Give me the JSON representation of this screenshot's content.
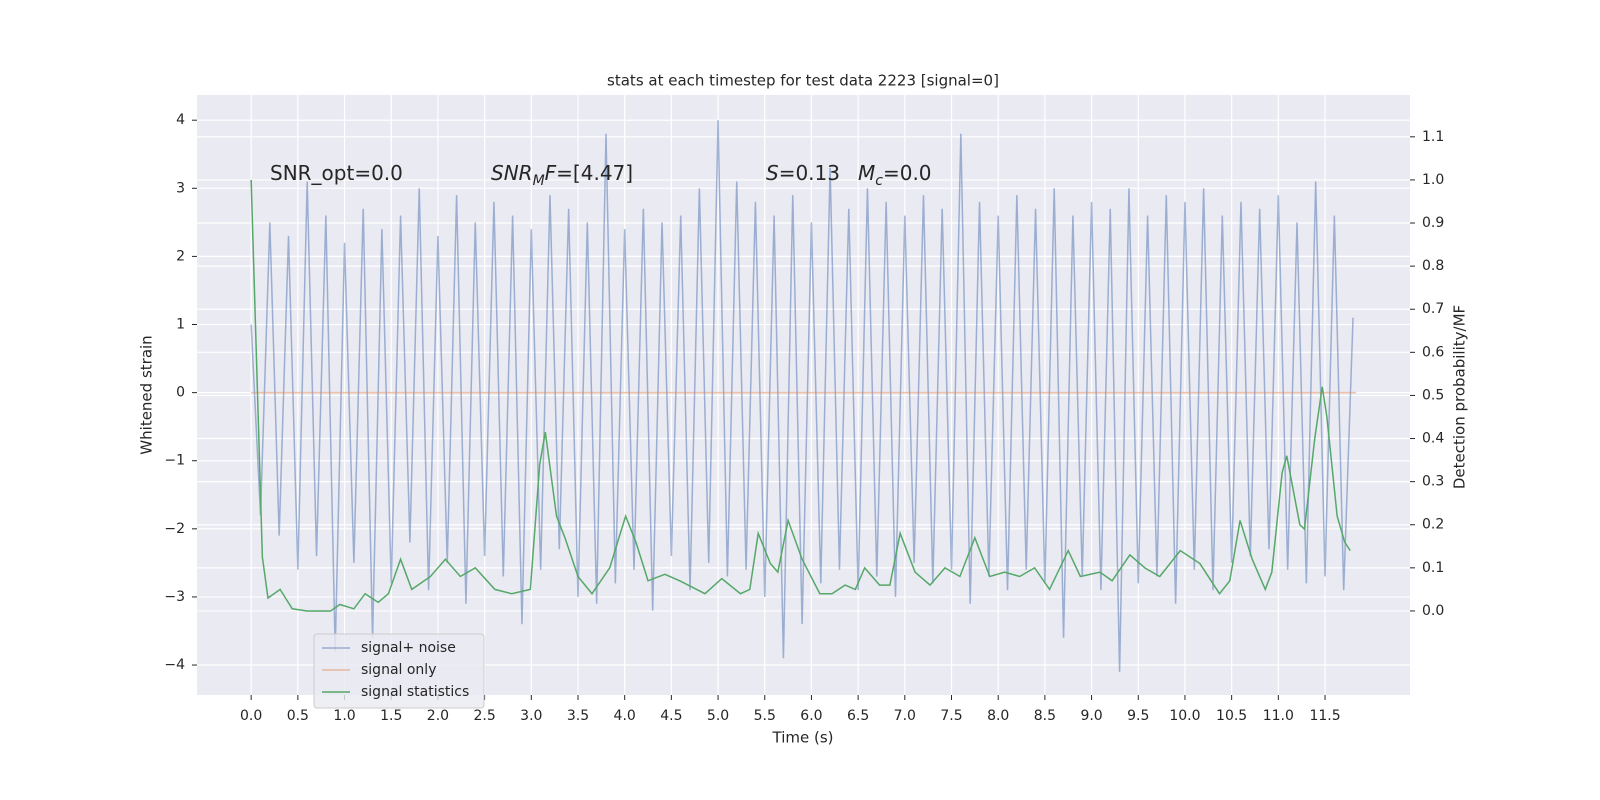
{
  "chart_data": {
    "type": "line",
    "title": "stats at each timestep for test data 2223 [signal=0]",
    "xlabel": "Time (s)",
    "ylabel": "Whitened strain",
    "y2label": "Detection probability/MF",
    "annotations": [
      "SNR_opt=0.0",
      [
        "SNR",
        "M",
        "F",
        "=[4.47]"
      ],
      [
        "S",
        "=0.13"
      ],
      [
        "M",
        "c",
        "=0.0"
      ]
    ],
    "xlim": [
      -0.58,
      12.41
    ],
    "ylim": [
      -4.44,
      4.37
    ],
    "y2lim": [
      -0.195,
      1.197
    ],
    "xticks": [
      {
        "value": 0,
        "label": "0.0"
      },
      0.5,
      {
        "value": 1,
        "label": "1.0"
      },
      1.5,
      {
        "value": 2,
        "label": "2.0"
      },
      2.5,
      {
        "value": 3,
        "label": "3.0"
      },
      3.5,
      {
        "value": 4,
        "label": "4.0"
      },
      4.5,
      {
        "value": 5,
        "label": "5.0"
      },
      5.5,
      {
        "value": 6,
        "label": "6.0"
      },
      6.5,
      {
        "value": 7,
        "label": "7.0"
      },
      7.5,
      {
        "value": 8,
        "label": "8.0"
      },
      8.5,
      {
        "value": 9,
        "label": "9.0"
      },
      9.5,
      {
        "value": 10,
        "label": "10.0"
      },
      10.5,
      {
        "value": 11,
        "label": "11.0"
      },
      11.5
    ],
    "yticks": [
      {
        "value": -4,
        "label": "−4"
      },
      {
        "value": -3,
        "label": "−3"
      },
      {
        "value": -2,
        "label": "−2"
      },
      {
        "value": -1,
        "label": "−1"
      },
      0,
      1,
      2,
      3,
      4
    ],
    "y2ticks": [
      {
        "value": 0,
        "label": "0.0"
      },
      0.1,
      0.2,
      0.3,
      0.4,
      0.5,
      0.6,
      0.7,
      0.8,
      0.9,
      {
        "value": 1,
        "label": "1.0"
      },
      1.1
    ],
    "grid": true,
    "legend": "lower left",
    "series": [
      {
        "name": "signal+ noise",
        "color": "#4c72b0",
        "alpha": 0.5,
        "x": [
          0,
          0.1,
          0.2,
          0.3,
          0.4,
          0.5,
          0.6,
          0.7,
          0.8,
          0.9,
          1,
          1.1,
          1.2,
          1.3,
          1.4,
          1.5,
          1.6,
          1.7,
          1.8,
          1.9,
          2,
          2.1,
          2.2,
          2.3,
          2.4,
          2.5,
          2.6,
          2.7,
          2.8,
          2.9,
          3,
          3.1,
          3.2,
          3.3,
          3.4,
          3.5,
          3.6,
          3.7,
          3.8,
          3.9,
          4,
          4.1,
          4.2,
          4.3,
          4.4,
          4.5,
          4.6,
          4.7,
          4.8,
          4.9,
          5,
          5.1,
          5.2,
          5.3,
          5.4,
          5.5,
          5.6,
          5.7,
          5.8,
          5.9,
          6,
          6.1,
          6.2,
          6.3,
          6.4,
          6.5,
          6.6,
          6.7,
          6.8,
          6.9,
          7,
          7.1,
          7.2,
          7.3,
          7.4,
          7.5,
          7.6,
          7.7,
          7.8,
          7.9,
          8,
          8.1,
          8.2,
          8.3,
          8.4,
          8.5,
          8.6,
          8.7,
          8.8,
          8.9,
          9,
          9.1,
          9.2,
          9.3,
          9.4,
          9.5,
          9.6,
          9.7,
          9.8,
          9.9,
          10,
          10.1,
          10.2,
          10.3,
          10.4,
          10.5,
          10.6,
          10.7,
          10.8,
          10.9,
          11,
          11.1,
          11.2,
          11.3,
          11.4,
          11.5,
          11.6,
          11.7,
          11.8
        ],
        "values": [
          1.0,
          -1.8,
          2.5,
          -2.1,
          2.3,
          -2.6,
          3.1,
          -2.4,
          2.6,
          -3.8,
          2.2,
          -2.5,
          2.7,
          -3.6,
          2.4,
          -2.8,
          2.6,
          -2.2,
          3.0,
          -2.9,
          2.3,
          -2.5,
          2.9,
          -3.1,
          2.5,
          -2.4,
          2.8,
          -2.7,
          2.6,
          -3.4,
          2.4,
          -2.6,
          2.9,
          -2.3,
          2.7,
          -3.0,
          2.5,
          -3.1,
          3.8,
          -2.8,
          2.4,
          -2.6,
          2.7,
          -3.2,
          2.5,
          -2.4,
          2.6,
          -2.9,
          3.0,
          -2.5,
          4.0,
          -2.7,
          3.1,
          -2.6,
          2.8,
          -3.0,
          2.6,
          -3.9,
          2.9,
          -3.4,
          2.5,
          -2.8,
          3.3,
          -2.6,
          2.7,
          -2.9,
          3.0,
          -2.7,
          2.8,
          -3.0,
          2.6,
          -2.5,
          2.9,
          -2.8,
          2.7,
          -2.6,
          3.8,
          -3.1,
          2.8,
          -2.7,
          2.6,
          -2.9,
          2.9,
          -2.6,
          2.7,
          -2.8,
          3.0,
          -3.6,
          2.6,
          -2.7,
          2.8,
          -2.9,
          2.7,
          -4.1,
          3.0,
          -2.8,
          2.6,
          -2.7,
          2.9,
          -3.1,
          2.8,
          -2.6,
          3.0,
          -2.9,
          2.6,
          -2.5,
          2.8,
          -2.4,
          2.7,
          -2.3,
          2.9,
          -2.6,
          2.5,
          -2.8,
          3.1,
          -2.7,
          2.6,
          -2.9,
          1.1
        ]
      },
      {
        "name": "signal only",
        "color": "#dd8452",
        "alpha": 0.5,
        "x": [
          0,
          11.83
        ],
        "values": [
          0,
          0
        ]
      },
      {
        "name": "signal statistics",
        "color": "#55a868",
        "alpha": 1,
        "axis": "y2",
        "x": [
          0,
          0.12,
          0.18,
          0.31,
          0.44,
          0.6,
          0.85,
          0.95,
          1.1,
          1.22,
          1.36,
          1.47,
          1.6,
          1.72,
          1.92,
          2.08,
          2.24,
          2.4,
          2.61,
          2.79,
          2.99,
          3.09,
          3.15,
          3.27,
          3.36,
          3.5,
          3.65,
          3.84,
          4.01,
          4.12,
          4.25,
          4.43,
          4.59,
          4.86,
          5.04,
          5.24,
          5.34,
          5.43,
          5.56,
          5.64,
          5.75,
          5.9,
          6.09,
          6.22,
          6.36,
          6.47,
          6.57,
          6.73,
          6.84,
          6.95,
          7.11,
          7.27,
          7.43,
          7.59,
          7.75,
          7.91,
          8.07,
          8.23,
          8.39,
          8.55,
          8.75,
          8.88,
          9.09,
          9.22,
          9.41,
          9.57,
          9.73,
          9.95,
          10.16,
          10.37,
          10.48,
          10.59,
          10.72,
          10.86,
          10.93,
          11.04,
          11.09,
          11.23,
          11.28,
          11.39,
          11.47,
          11.52,
          11.63,
          11.71,
          11.77
        ],
        "values": [
          1.0,
          0.125,
          0.03,
          0.05,
          0.005,
          0.0,
          0.0,
          0.015,
          0.005,
          0.04,
          0.02,
          0.04,
          0.12,
          0.05,
          0.08,
          0.12,
          0.08,
          0.1,
          0.05,
          0.04,
          0.05,
          0.34,
          0.415,
          0.22,
          0.17,
          0.08,
          0.04,
          0.1,
          0.22,
          0.16,
          0.07,
          0.085,
          0.07,
          0.04,
          0.075,
          0.04,
          0.05,
          0.18,
          0.11,
          0.09,
          0.21,
          0.12,
          0.04,
          0.04,
          0.06,
          0.05,
          0.1,
          0.06,
          0.06,
          0.18,
          0.09,
          0.06,
          0.1,
          0.08,
          0.17,
          0.08,
          0.09,
          0.08,
          0.1,
          0.05,
          0.14,
          0.08,
          0.09,
          0.07,
          0.13,
          0.1,
          0.08,
          0.14,
          0.11,
          0.04,
          0.07,
          0.21,
          0.12,
          0.05,
          0.09,
          0.32,
          0.36,
          0.2,
          0.19,
          0.4,
          0.52,
          0.45,
          0.22,
          0.16,
          0.14
        ]
      }
    ]
  }
}
